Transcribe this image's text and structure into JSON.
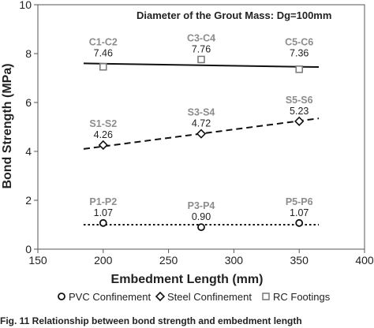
{
  "chart_data": {
    "type": "scatter",
    "title": "Diameter of the Grout Mass: Dg=100mm",
    "xlabel": "Embedment Length (mm)",
    "ylabel": "Bond Strength (MPa)",
    "xlim": [
      150,
      400
    ],
    "ylim": [
      0,
      10
    ],
    "xticks": [
      150,
      200,
      250,
      300,
      350,
      400
    ],
    "yticks": [
      0,
      2,
      4,
      6,
      8,
      10
    ],
    "legend_position": "bottom",
    "grid": false,
    "series": [
      {
        "name": "PVC Confinement",
        "marker": "circle",
        "line_style": "dotted",
        "trend_y": [
          1.0,
          1.0
        ],
        "points": [
          {
            "x": 200,
            "y": 1.07,
            "group": "P1-P2",
            "value": "1.07"
          },
          {
            "x": 275,
            "y": 0.9,
            "group": "P3-P4",
            "value": "0.90"
          },
          {
            "x": 350,
            "y": 1.07,
            "group": "P5-P6",
            "value": "1.07"
          }
        ]
      },
      {
        "name": "Steel Confinement",
        "marker": "diamond",
        "line_style": "dashed",
        "trend_y": [
          4.1,
          5.35
        ],
        "points": [
          {
            "x": 200,
            "y": 4.26,
            "group": "S1-S2",
            "value": "4.26"
          },
          {
            "x": 275,
            "y": 4.72,
            "group": "S3-S4",
            "value": "4.72"
          },
          {
            "x": 350,
            "y": 5.23,
            "group": "S5-S6",
            "value": "5.23"
          }
        ]
      },
      {
        "name": "RC Footings",
        "marker": "square",
        "line_style": "solid",
        "trend_y": [
          7.6,
          7.45
        ],
        "points": [
          {
            "x": 200,
            "y": 7.46,
            "group": "C1-C2",
            "value": "7.46"
          },
          {
            "x": 275,
            "y": 7.76,
            "group": "C3-C4",
            "value": "7.76"
          },
          {
            "x": 350,
            "y": 7.36,
            "group": "C5-C6",
            "value": "7.36"
          }
        ]
      }
    ],
    "trend_x_range": [
      185,
      365
    ]
  },
  "caption": "Fig. 11 Relationship between bond strength and embedment length"
}
